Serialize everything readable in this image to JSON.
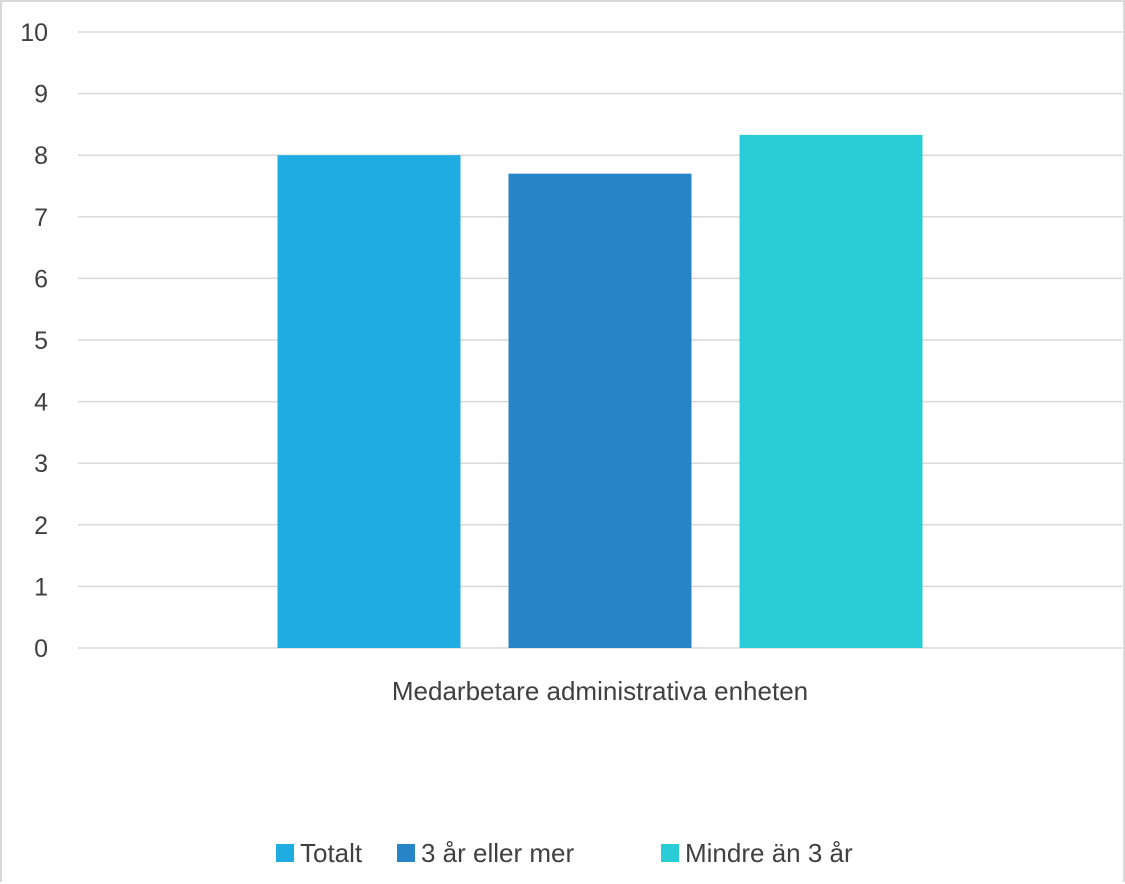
{
  "chart_data": {
    "type": "bar",
    "categories": [
      "Medarbetare administrativa enheten"
    ],
    "series": [
      {
        "name": "Totalt",
        "values": [
          8.0
        ],
        "color": "#1eace2"
      },
      {
        "name": "3 år eller mer",
        "values": [
          7.7
        ],
        "color": "#2684c7"
      },
      {
        "name": "Mindre än 3 år",
        "values": [
          8.33
        ],
        "color": "#29cdd6"
      }
    ],
    "ylim": [
      0,
      10
    ],
    "yticks": [
      "0",
      "1",
      "2",
      "3",
      "4",
      "5",
      "6",
      "7",
      "8",
      "9",
      "10"
    ],
    "grid": true,
    "legend_position": "bottom",
    "title": "",
    "xlabel": "",
    "ylabel": ""
  },
  "colors": {
    "gridline": "#d9d9d9",
    "text": "#404040"
  }
}
